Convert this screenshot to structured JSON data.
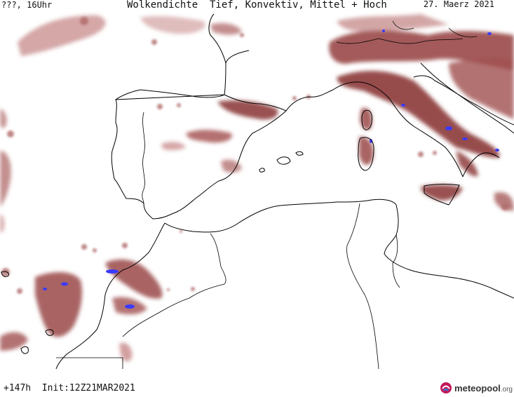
{
  "header": {
    "left": "???, 16Uhr",
    "title": "Wolkendichte  Tief, Konvektiv, Mittel + Hoch",
    "date": "27. Maerz 2021"
  },
  "footer": {
    "left": "+147h  Init:12Z21MAR2021",
    "logo_main": "meteopool",
    "logo_suffix": ".org"
  },
  "colors": {
    "cloud_dark": "#8e3d3d",
    "cloud_mid": "#b06a6a",
    "cloud_light": "#d9a9a9",
    "convective": "#3a3aff",
    "coast": "#000000",
    "background": "#ffffff"
  },
  "icons": [
    "meteopool-logo-icon"
  ]
}
